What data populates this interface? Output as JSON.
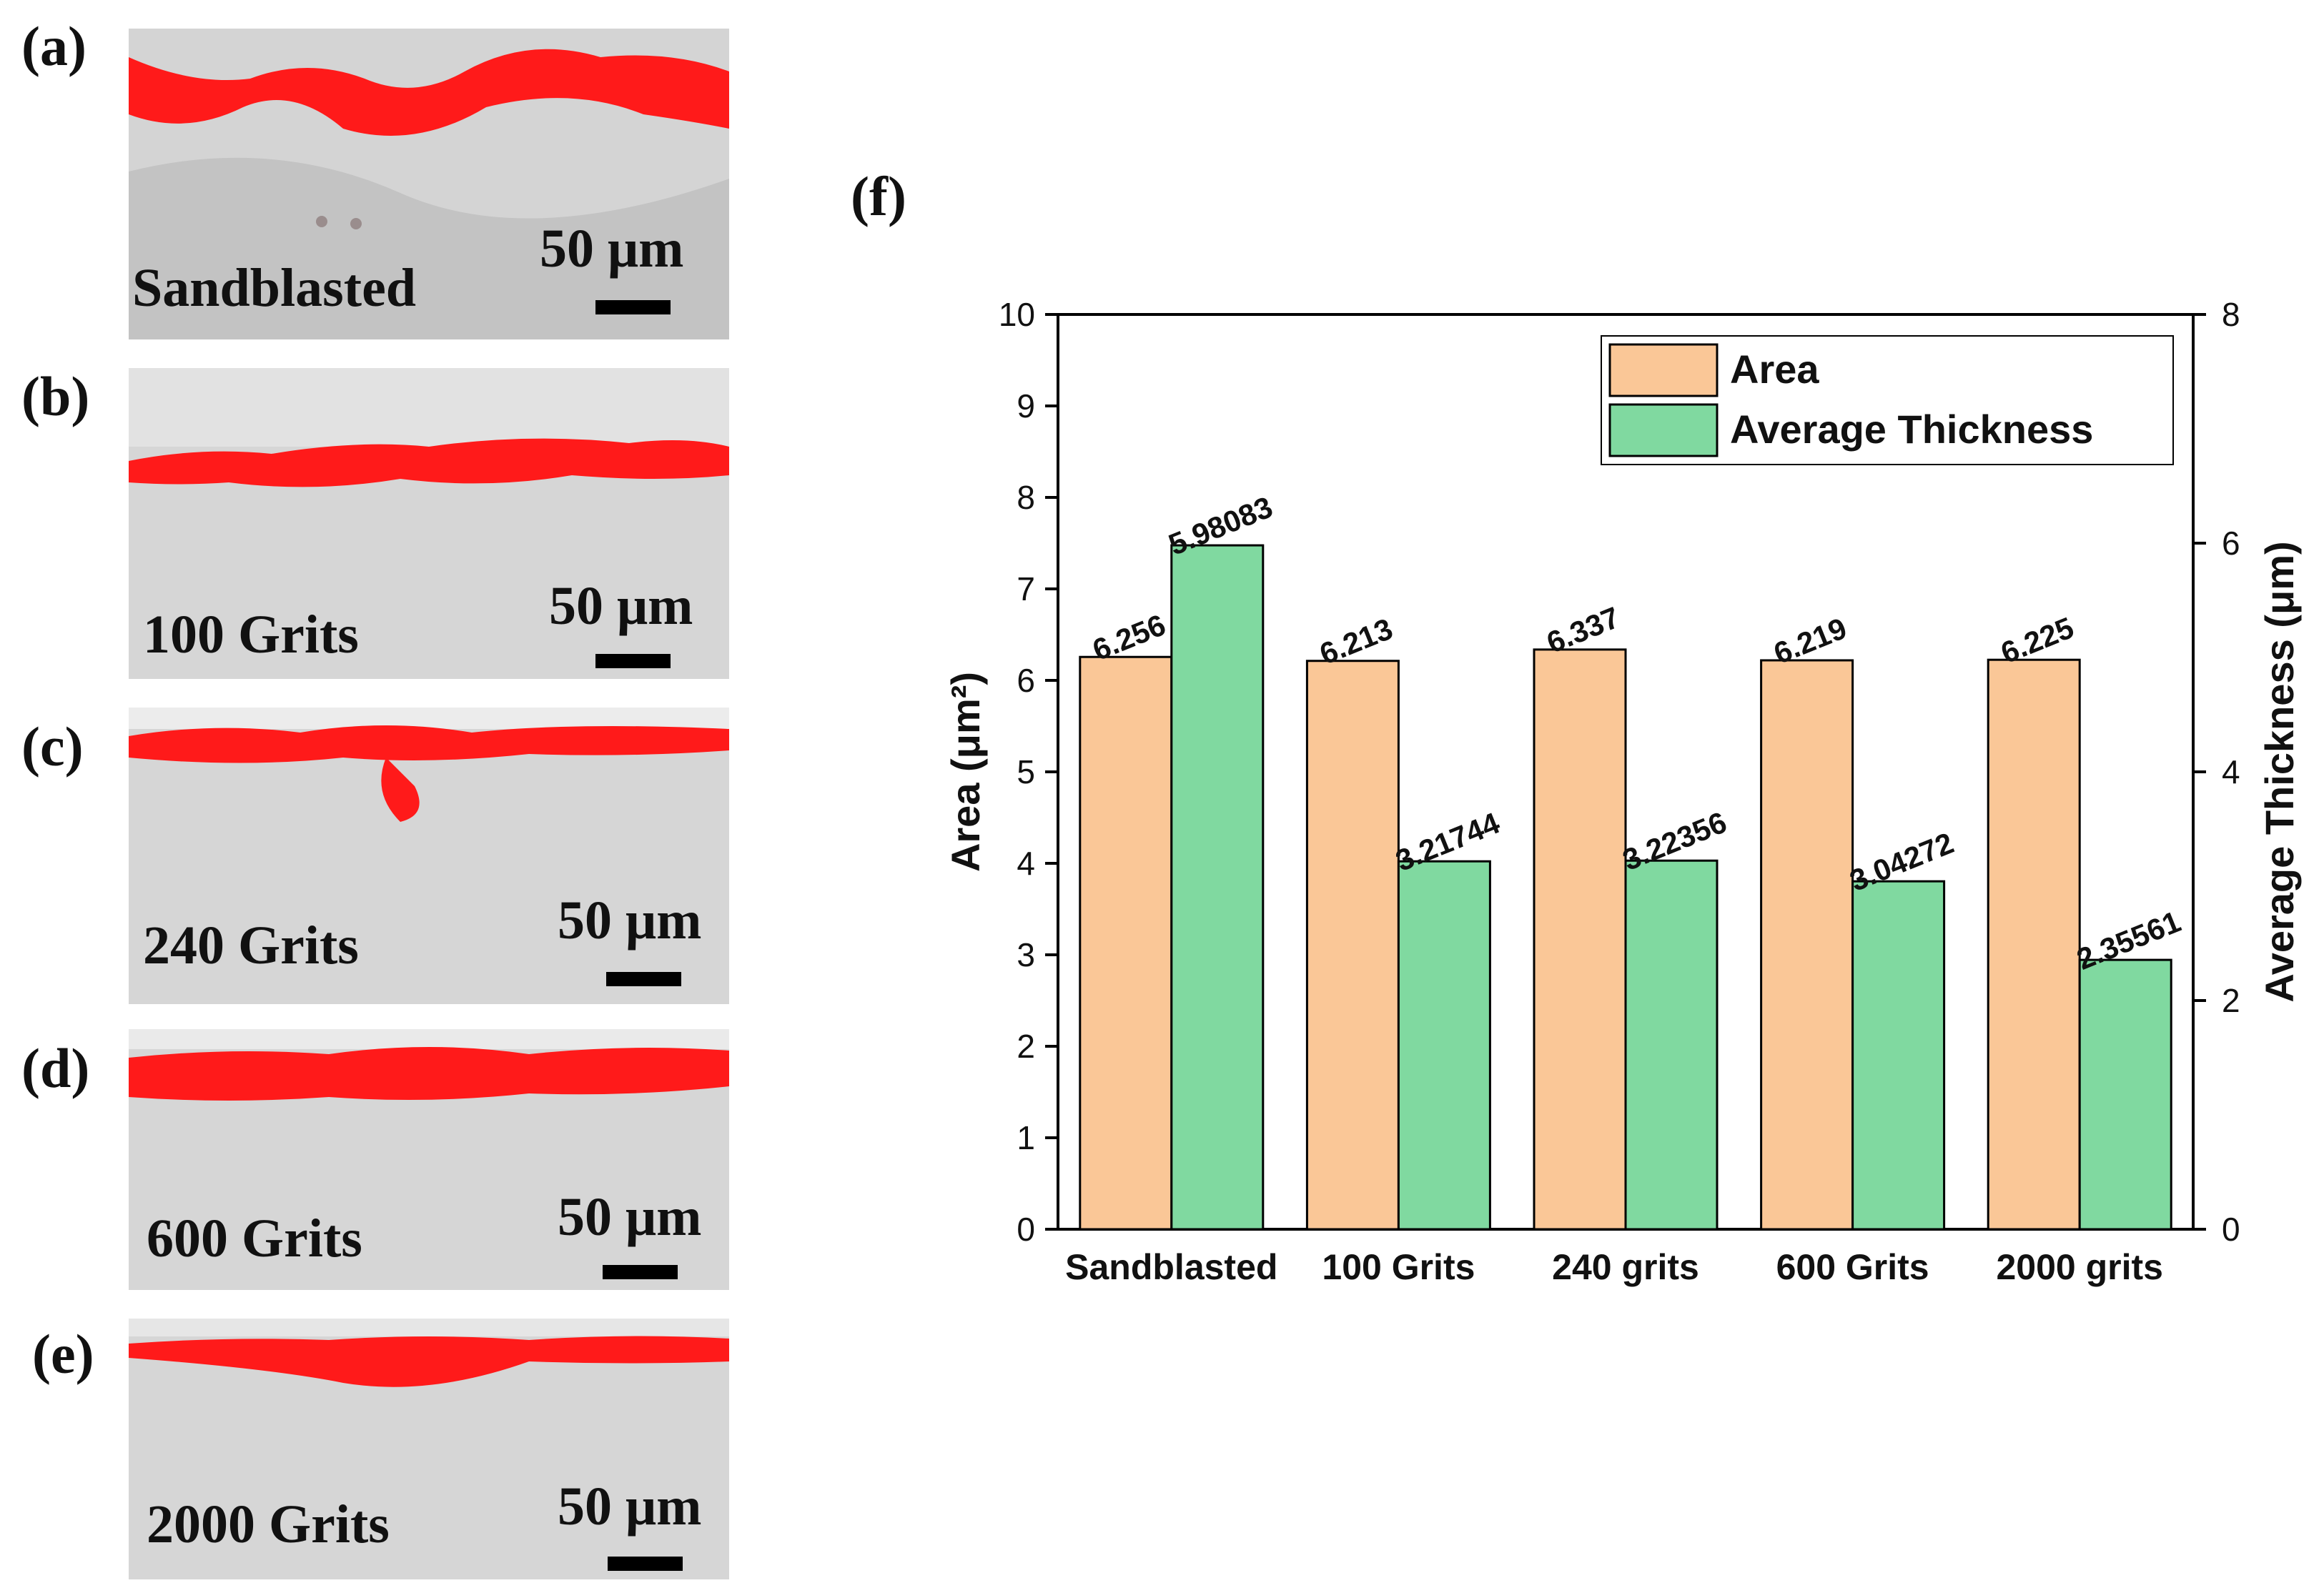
{
  "panels": [
    {
      "letter": "(a)",
      "label": "Sandblasted",
      "scale": "50 μm"
    },
    {
      "letter": "(b)",
      "label": "100 Grits",
      "scale": "50 μm"
    },
    {
      "letter": "(c)",
      "label": "240 Grits",
      "scale": "50 μm"
    },
    {
      "letter": "(d)",
      "label": "600 Grits",
      "scale": "50 μm"
    },
    {
      "letter": "(e)",
      "label": "2000 Grits",
      "scale": "50 μm"
    }
  ],
  "chart_letter": "(f)",
  "colors": {
    "area": "#FAC797",
    "thickness": "#80D9A0",
    "layer": "#FF0000",
    "substrate": "#D6D6D6"
  },
  "chart_data": {
    "type": "bar",
    "categories": [
      "Sandblasted",
      "100 Grits",
      "240 grits",
      "600 Grits",
      "2000 grits"
    ],
    "series": [
      {
        "name": "Area",
        "axis": "left",
        "values": [
          6.256,
          6.213,
          6.337,
          6.219,
          6.225
        ],
        "labels": [
          "6.256",
          "6.213",
          "6.337",
          "6.219",
          "6.225"
        ]
      },
      {
        "name": "Average Thickness",
        "axis": "right",
        "values": [
          5.98083,
          3.21744,
          3.22356,
          3.04272,
          2.35561
        ],
        "labels": [
          "5.98083",
          "3.21744",
          "3.22356",
          "3.04272",
          "2.35561"
        ]
      }
    ],
    "ylabel_left": "Area (μm²)",
    "ylabel_right": "Average Thickness (μm)",
    "ylim_left": [
      0,
      10
    ],
    "ylim_right": [
      0,
      8
    ],
    "yticks_left": [
      "0",
      "1",
      "2",
      "3",
      "4",
      "5",
      "6",
      "7",
      "8",
      "9",
      "10"
    ],
    "yticks_right": [
      "0",
      "2",
      "4",
      "6",
      "8"
    ],
    "legend_position": "top-right",
    "grid": false
  }
}
